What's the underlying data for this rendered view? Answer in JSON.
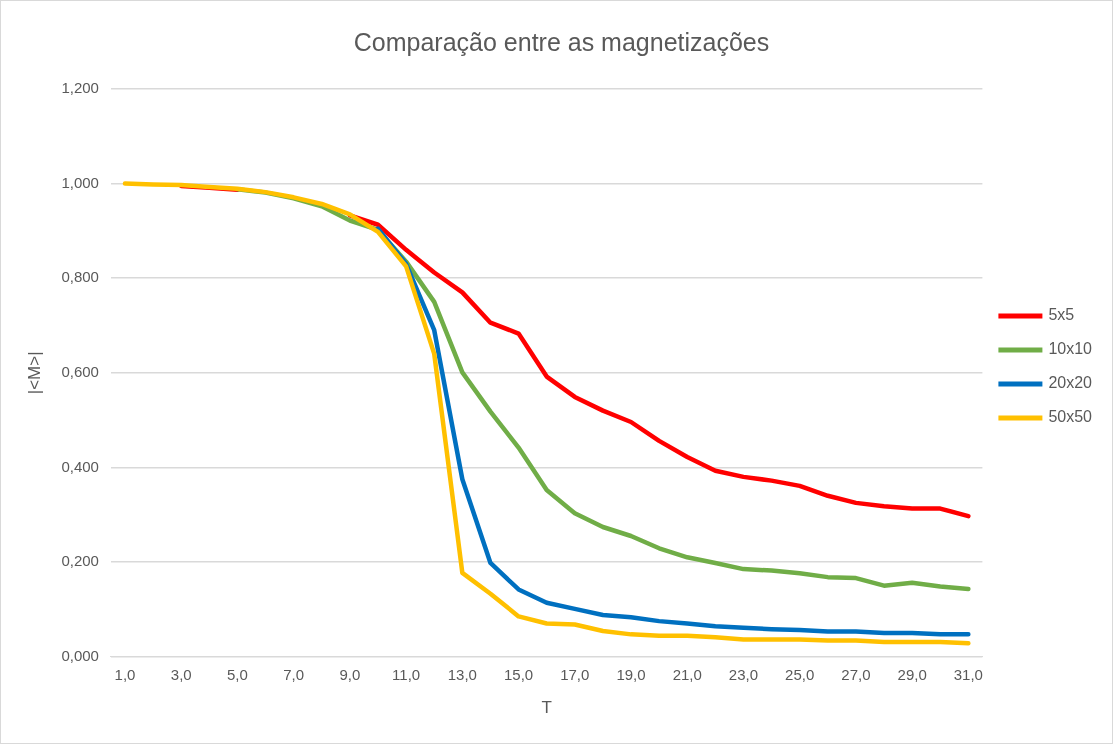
{
  "chart_data": {
    "type": "line",
    "title": "Comparação entre as magnetizações",
    "xlabel": "T",
    "ylabel": "|<M>|",
    "categories": [
      "1,0",
      null,
      "3,0",
      null,
      "5,0",
      null,
      "7,0",
      null,
      "9,0",
      null,
      "11,0",
      null,
      "13,0",
      null,
      "15,0",
      null,
      "17,0",
      null,
      "19,0",
      null,
      "21,0",
      null,
      "23,0",
      null,
      "25,0",
      null,
      "27,0",
      null,
      "29,0",
      null,
      "31,0"
    ],
    "series": [
      {
        "name": "5x5",
        "color": "#ff0000",
        "values": [
          null,
          null,
          0.995,
          0.991,
          0.987,
          null,
          null,
          null,
          0.933,
          0.913,
          0.86,
          0.812,
          0.77,
          0.706,
          0.683,
          0.592,
          0.549,
          0.52,
          0.496,
          0.456,
          0.422,
          0.393,
          0.38,
          0.372,
          0.361,
          0.34,
          0.325,
          0.318,
          0.313,
          0.313,
          0.297
        ]
      },
      {
        "name": "10x10",
        "color": "#70ad47",
        "values": [
          null,
          null,
          null,
          null,
          0.988,
          0.981,
          0.969,
          0.952,
          0.922,
          0.902,
          0.835,
          0.75,
          0.601,
          0.518,
          0.442,
          0.352,
          0.303,
          0.274,
          0.255,
          0.229,
          0.21,
          0.198,
          0.185,
          0.182,
          0.176,
          0.168,
          0.166,
          0.15,
          0.156,
          0.148,
          0.143
        ]
      },
      {
        "name": "20x20",
        "color": "#0070c0",
        "values": [
          null,
          null,
          null,
          null,
          null,
          null,
          null,
          null,
          null,
          0.905,
          0.83,
          0.69,
          0.375,
          0.198,
          0.142,
          0.114,
          0.101,
          0.088,
          0.083,
          0.075,
          0.07,
          0.064,
          0.061,
          0.058,
          0.056,
          0.053,
          0.053,
          0.05,
          0.05,
          0.047,
          0.047
        ]
      },
      {
        "name": "50x50",
        "color": "#ffc000",
        "values": [
          1.0,
          0.998,
          0.997,
          0.993,
          0.989,
          0.982,
          0.971,
          0.957,
          0.935,
          0.898,
          0.825,
          0.64,
          0.177,
          0.133,
          0.085,
          0.07,
          0.068,
          0.054,
          0.047,
          0.044,
          0.044,
          0.041,
          0.036,
          0.036,
          0.036,
          0.034,
          0.034,
          0.031,
          0.031,
          0.031,
          0.028
        ]
      }
    ],
    "ylim": [
      0,
      1.2
    ],
    "yticks": [
      {
        "value": 0,
        "label": "0,000"
      },
      {
        "value": 0.2,
        "label": "0,200"
      },
      {
        "value": 0.4,
        "label": "0,400"
      },
      {
        "value": 0.6,
        "label": "0,600"
      },
      {
        "value": 0.8,
        "label": "0,800"
      },
      {
        "value": 1.0,
        "label": "1,000"
      },
      {
        "value": 1.2,
        "label": "1,200"
      }
    ],
    "grid": "y",
    "legend": "right",
    "marker": "none",
    "line_style": "solid"
  }
}
